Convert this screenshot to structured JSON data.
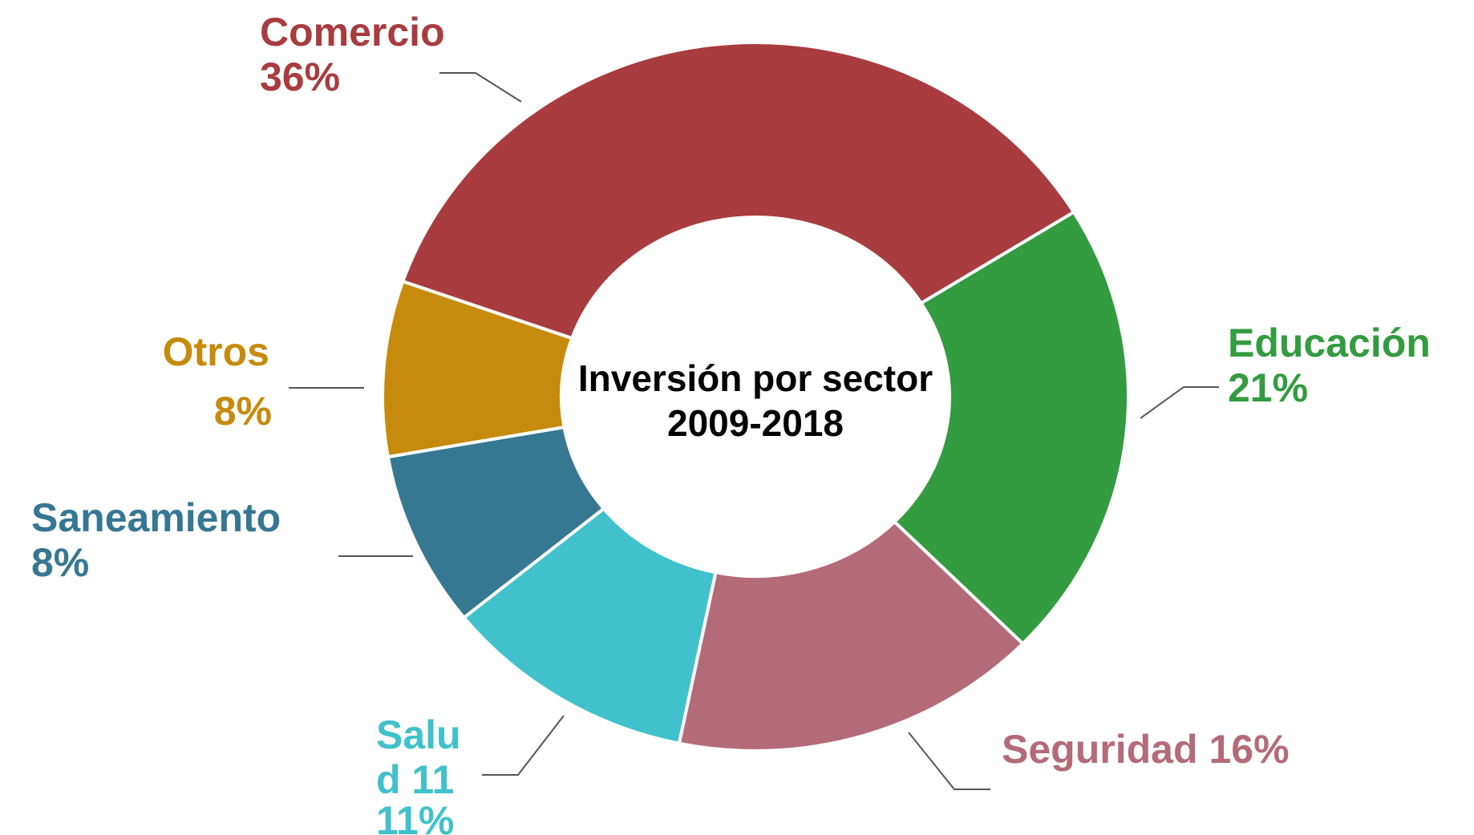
{
  "chart_data": {
    "type": "donut",
    "title": "Inversión por sector",
    "subtitle": "2009-2018",
    "categories": [
      "Comercio",
      "Educación",
      "Seguridad",
      "Salud 11",
      "Saneamiento",
      "Otros"
    ],
    "values": [
      36,
      21,
      16,
      11,
      8,
      8
    ],
    "value_labels": [
      "36%",
      "21%",
      "16%",
      "11%",
      "8%",
      "8%"
    ],
    "colors": [
      "#a83c3f",
      "#339b40",
      "#b46b79",
      "#40c1cb",
      "#367792",
      "#c68a0c"
    ]
  }
}
